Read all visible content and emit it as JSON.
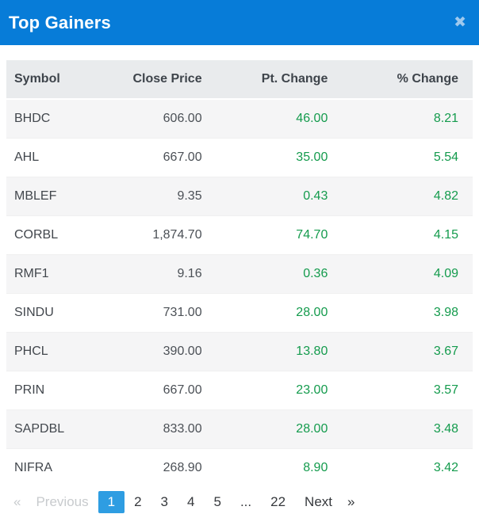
{
  "widget": {
    "title": "Top Gainers",
    "close_icon": "✖"
  },
  "colors": {
    "titlebar_blue": "#077cd8",
    "active_page_blue": "#2e9de2",
    "gain_green": "#149b4d",
    "header_row_gray": "#e9ebed",
    "stripe_gray": "#f5f5f6"
  },
  "table": {
    "columns": [
      "Symbol",
      "Close Price",
      "Pt. Change",
      "% Change"
    ],
    "rows": [
      {
        "symbol": "BHDC",
        "close_price": "606.00",
        "pt_change": "46.00",
        "pct_change": "8.21"
      },
      {
        "symbol": "AHL",
        "close_price": "667.00",
        "pt_change": "35.00",
        "pct_change": "5.54"
      },
      {
        "symbol": "MBLEF",
        "close_price": "9.35",
        "pt_change": "0.43",
        "pct_change": "4.82"
      },
      {
        "symbol": "CORBL",
        "close_price": "1,874.70",
        "pt_change": "74.70",
        "pct_change": "4.15"
      },
      {
        "symbol": "RMF1",
        "close_price": "9.16",
        "pt_change": "0.36",
        "pct_change": "4.09"
      },
      {
        "symbol": "SINDU",
        "close_price": "731.00",
        "pt_change": "28.00",
        "pct_change": "3.98"
      },
      {
        "symbol": "PHCL",
        "close_price": "390.00",
        "pt_change": "13.80",
        "pct_change": "3.67"
      },
      {
        "symbol": "PRIN",
        "close_price": "667.00",
        "pt_change": "23.00",
        "pct_change": "3.57"
      },
      {
        "symbol": "SAPDBL",
        "close_price": "833.00",
        "pt_change": "28.00",
        "pct_change": "3.48"
      },
      {
        "symbol": "NIFRA",
        "close_price": "268.90",
        "pt_change": "8.90",
        "pct_change": "3.42"
      }
    ]
  },
  "pagination": {
    "prev_arrow": "«",
    "prev_label": "Previous",
    "pages": [
      "1",
      "2",
      "3",
      "4",
      "5",
      "...",
      "22"
    ],
    "active_page": "1",
    "next_label": "Next",
    "next_arrow": "»"
  }
}
